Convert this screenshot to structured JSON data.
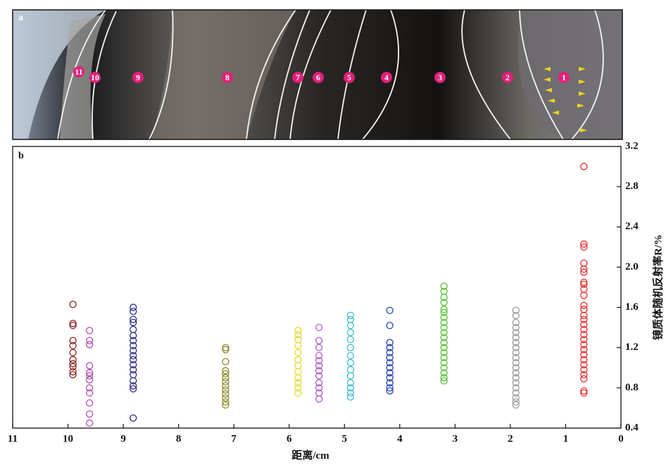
{
  "photo": {
    "panel_label": "a",
    "zones": [
      "1",
      "2",
      "3",
      "4",
      "5",
      "6",
      "7",
      "8",
      "9",
      "10",
      "11"
    ]
  },
  "chart_data": {
    "type": "scatter",
    "panel_label": "b",
    "x_label": "距离/cm",
    "y_label": "镜质体随机反射率R/%",
    "xlim": [
      11,
      0
    ],
    "xticks": [
      11,
      10,
      9,
      8,
      7,
      6,
      5,
      4,
      3,
      2,
      1,
      0
    ],
    "ylim": [
      0.4,
      3.2
    ],
    "yticks": [
      0.4,
      0.8,
      1.2,
      1.6,
      {
        "value": 2,
        "label": "2.0"
      },
      2.4,
      2.8,
      3.2
    ],
    "y_axis_side": "right",
    "marker": "open-circle",
    "series": [
      {
        "color": "#e62a2e",
        "x": 0.67,
        "values": [
          3.0,
          2.23,
          2.2,
          2.04,
          1.98,
          1.95,
          1.85,
          1.83,
          1.78,
          1.72,
          1.62,
          1.58,
          1.52,
          1.48,
          1.43,
          1.38,
          1.33,
          1.28,
          1.23,
          1.18,
          1.13,
          1.08,
          1.03,
          0.98,
          0.93,
          0.89,
          0.77,
          0.75
        ]
      },
      {
        "color": "#9c9c9c",
        "x": 1.9,
        "values": [
          1.57,
          1.52,
          1.45,
          1.4,
          1.35,
          1.3,
          1.25,
          1.2,
          1.15,
          1.1,
          1.05,
          1.0,
          0.95,
          0.9,
          0.85,
          0.8,
          0.75,
          0.7,
          0.66,
          0.63
        ]
      },
      {
        "color": "#5cc23a",
        "x": 3.2,
        "values": [
          1.81,
          1.76,
          1.7,
          1.65,
          1.58,
          1.55,
          1.5,
          1.45,
          1.4,
          1.35,
          1.3,
          1.25,
          1.2,
          1.15,
          1.1,
          1.05,
          1.0,
          0.95,
          0.9,
          0.87
        ]
      },
      {
        "color": "#2640b0",
        "x": 4.18,
        "values": [
          1.57,
          1.42,
          1.25,
          1.2,
          1.15,
          1.1,
          1.05,
          1.0,
          0.95,
          0.9,
          0.85,
          0.8,
          0.77
        ]
      },
      {
        "color": "#3bbdd0",
        "x": 4.89,
        "values": [
          1.52,
          1.48,
          1.42,
          1.35,
          1.28,
          1.2,
          1.12,
          1.05,
          0.98,
          0.92,
          0.85,
          0.8,
          0.75,
          0.71
        ]
      },
      {
        "color": "#b05cc8",
        "x": 5.46,
        "values": [
          1.4,
          1.27,
          1.2,
          1.12,
          1.07,
          1.02,
          0.97,
          0.92,
          0.85,
          0.8,
          0.75,
          0.69
        ]
      },
      {
        "color": "#e2dc2c",
        "x": 5.84,
        "values": [
          1.37,
          1.33,
          1.28,
          1.22,
          1.15,
          1.08,
          1.02,
          0.96,
          0.9,
          0.85,
          0.8,
          0.75
        ]
      },
      {
        "color": "#8c8c2a",
        "x": 7.15,
        "values": [
          1.2,
          1.18,
          1.06,
          0.97,
          0.94,
          0.9,
          0.86,
          0.82,
          0.78,
          0.74,
          0.7,
          0.66,
          0.63
        ]
      },
      {
        "color": "#2c2c82",
        "x": 8.82,
        "values": [
          1.6,
          1.56,
          1.48,
          1.45,
          1.38,
          1.32,
          1.27,
          1.22,
          1.17,
          1.12,
          1.08,
          1.03,
          0.98,
          0.93,
          0.87,
          0.82,
          0.79,
          0.5
        ]
      },
      {
        "color": "#b050b0",
        "x": 9.61,
        "values": [
          1.37,
          1.27,
          1.23,
          1.02,
          0.95,
          0.92,
          0.88,
          0.8,
          0.75,
          0.65,
          0.54,
          0.45
        ]
      },
      {
        "color": "#8b2222",
        "x": 9.91,
        "values": [
          1.63,
          1.44,
          1.42,
          1.27,
          1.22,
          1.15,
          1.08,
          1.04,
          1.01,
          0.96,
          0.93
        ]
      }
    ]
  }
}
